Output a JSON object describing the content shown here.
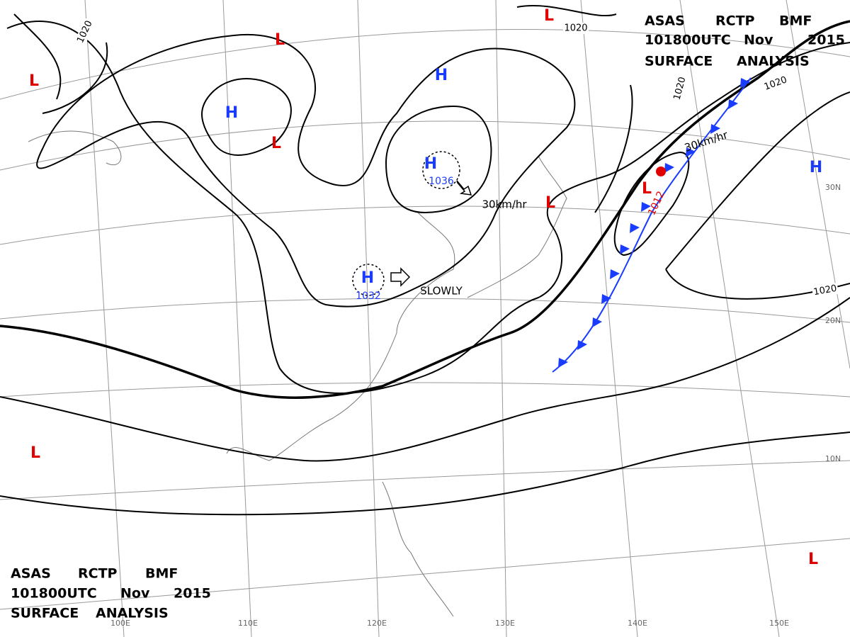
{
  "header_top": [
    [
      "ASAS",
      "RCTP",
      "BMF"
    ],
    [
      "101800UTC",
      "Nov",
      "2015"
    ],
    [
      "SURFACE",
      "ANALYSIS"
    ]
  ],
  "header_bottom": [
    [
      "ASAS",
      "RCTP",
      "BMF"
    ],
    [
      "101800UTC",
      "Nov",
      "2015"
    ],
    [
      "SURFACE",
      "ANALYSIS"
    ]
  ],
  "centers": [
    {
      "label": "H"
    },
    {
      "label": "H"
    },
    {
      "label": "H",
      "pressure": 1036
    },
    {
      "label": "H",
      "pressure": 1032
    },
    {
      "label": "H"
    },
    {
      "label": "L"
    },
    {
      "label": "L"
    },
    {
      "label": "L"
    },
    {
      "label": "L"
    },
    {
      "label": "L"
    },
    {
      "label": "L",
      "pressure": 1012
    },
    {
      "label": "L"
    },
    {
      "label": "L"
    }
  ],
  "isobar_labels": [
    1020,
    1020,
    1020,
    1020,
    1020
  ],
  "motion_labels": [
    "30km/hr",
    "SLOWLY",
    "30km/hr"
  ],
  "longitude_labels": [
    "100E",
    "110E",
    "120E",
    "130E",
    "140E",
    "150E"
  ],
  "latitude_labels": [
    "30N",
    "20N",
    "10N"
  ]
}
